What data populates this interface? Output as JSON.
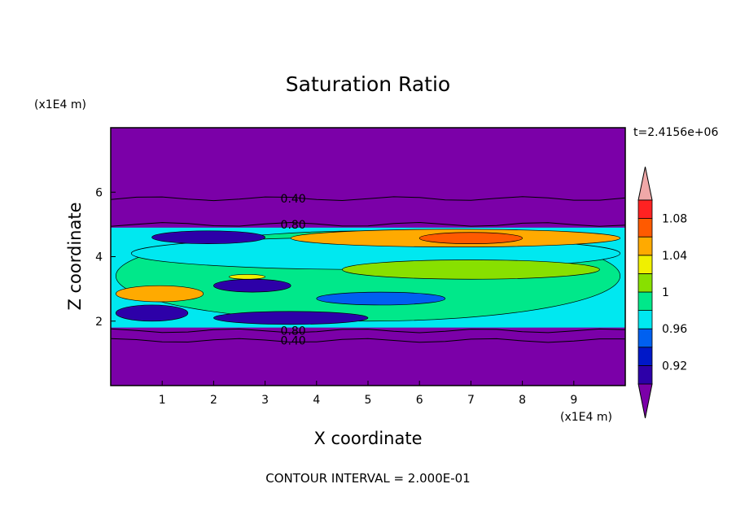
{
  "chart_data": {
    "type": "heatmap",
    "title": "Saturation Ratio",
    "xlabel": "X coordinate",
    "ylabel": "Z coordinate",
    "x_unit_label": "(x1E4 m)",
    "y_unit_label": "(x1E4 m)",
    "time_label": "t=2.4156e+06",
    "footer": "CONTOUR INTERVAL = 2.000E-01",
    "xlim": [
      0,
      10
    ],
    "ylim": [
      0,
      8
    ],
    "x_ticks": [
      "1",
      "2",
      "3",
      "4",
      "5",
      "6",
      "7",
      "8",
      "9"
    ],
    "y_ticks": [
      "2",
      "4",
      "6"
    ],
    "colorbar": {
      "levels": [
        0.92,
        0.94,
        0.96,
        0.98,
        1.0,
        1.02,
        1.04,
        1.06,
        1.08,
        1.1
      ],
      "labels": [
        "0.92",
        "0.96",
        "1",
        "1.04",
        "1.08"
      ],
      "colors": [
        "#7b00a8",
        "#2d00a8",
        "#0018c8",
        "#0060f0",
        "#00e8f0",
        "#00e88a",
        "#88e000",
        "#f0f000",
        "#ffaa00",
        "#ff5a00",
        "#ff2222",
        "#f0a8a8"
      ]
    },
    "contour_labels": [
      {
        "text": "0.40",
        "x": 3.3,
        "z": 5.8
      },
      {
        "text": "0.80",
        "x": 3.3,
        "z": 5.0
      },
      {
        "text": "0.80",
        "x": 3.3,
        "z": 1.7
      },
      {
        "text": "0.40",
        "x": 3.3,
        "z": 1.4
      }
    ],
    "moist_layer_z": [
      1.8,
      4.9
    ],
    "background_color": "#7b00a8",
    "regions": [
      {
        "value": 1.0,
        "x": [
          0.1,
          9.9
        ],
        "z": [
          2.0,
          4.8
        ]
      },
      {
        "value": 0.99,
        "x": [
          0.4,
          9.9
        ],
        "z": [
          3.6,
          4.6
        ]
      },
      {
        "value": 1.06,
        "x": [
          3.5,
          9.9
        ],
        "z": [
          4.3,
          4.85
        ]
      },
      {
        "value": 1.08,
        "x": [
          6.0,
          8.0
        ],
        "z": [
          4.4,
          4.75
        ]
      },
      {
        "value": 0.93,
        "x": [
          0.8,
          3.0
        ],
        "z": [
          4.4,
          4.8
        ]
      },
      {
        "value": 0.93,
        "x": [
          2.0,
          3.5
        ],
        "z": [
          2.9,
          3.3
        ]
      },
      {
        "value": 1.07,
        "x": [
          0.1,
          1.8
        ],
        "z": [
          2.6,
          3.1
        ]
      },
      {
        "value": 1.04,
        "x": [
          2.3,
          3.0
        ],
        "z": [
          3.3,
          3.45
        ]
      },
      {
        "value": 0.93,
        "x": [
          0.1,
          1.5
        ],
        "z": [
          2.0,
          2.5
        ]
      },
      {
        "value": 0.93,
        "x": [
          2.0,
          5.0
        ],
        "z": [
          1.9,
          2.3
        ]
      },
      {
        "value": 0.97,
        "x": [
          4.0,
          6.5
        ],
        "z": [
          2.5,
          2.9
        ]
      },
      {
        "value": 1.02,
        "x": [
          4.5,
          9.5
        ],
        "z": [
          3.3,
          3.9
        ]
      }
    ]
  }
}
